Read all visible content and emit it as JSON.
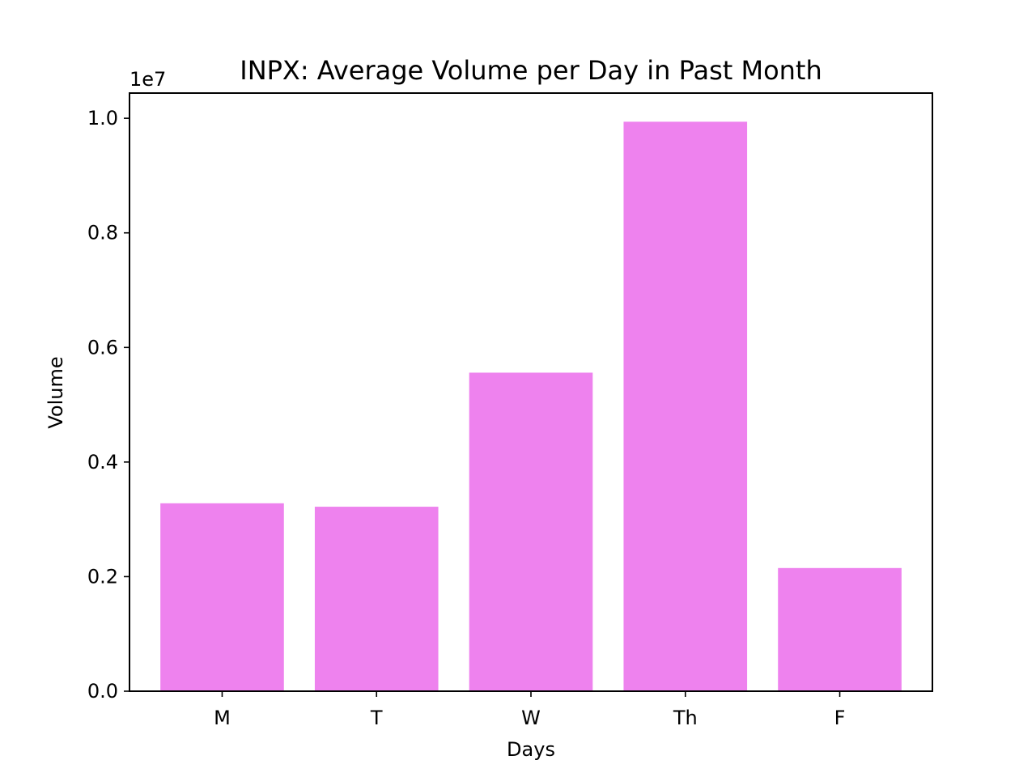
{
  "chart_data": {
    "type": "bar",
    "title": "INPX: Average Volume per Day in Past Month",
    "xlabel": "Days",
    "ylabel": "Volume",
    "categories": [
      "M",
      "T",
      "W",
      "Th",
      "F"
    ],
    "values": [
      3280000,
      3220000,
      5560000,
      9940000,
      2150000
    ],
    "ylim": [
      0,
      10440000
    ],
    "yticks": [
      0,
      2000000,
      4000000,
      6000000,
      8000000,
      10000000
    ],
    "ytick_labels": [
      "0.0",
      "0.2",
      "0.4",
      "0.6",
      "0.8",
      "1.0"
    ],
    "y_offset_label": "1e7",
    "bar_color": "#ee82ee",
    "grid": false,
    "legend": "none"
  }
}
